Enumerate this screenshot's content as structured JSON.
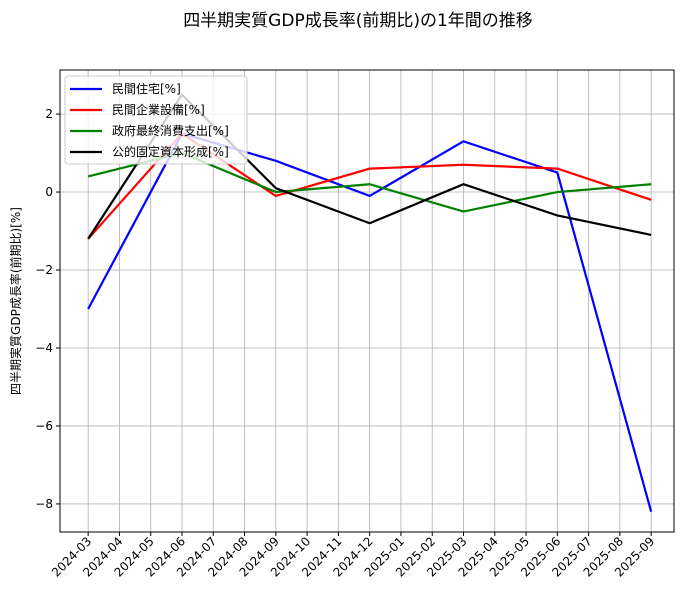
{
  "chart_data": {
    "type": "line",
    "title": "四半期実質GDP成長率(前期比)の1年間の推移",
    "xlabel": "",
    "ylabel": "四半期実質GDP成長率(前期比)[%]",
    "categories": [
      "2024-03",
      "2024-04",
      "2024-05",
      "2024-06",
      "2024-07",
      "2024-08",
      "2024-09",
      "2024-10",
      "2024-11",
      "2024-12",
      "2025-01",
      "2025-02",
      "2025-03",
      "2025-04",
      "2025-05",
      "2025-06",
      "2025-07",
      "2025-08",
      "2025-09"
    ],
    "x": [
      "2024-03",
      "2024-06",
      "2024-09",
      "2024-12",
      "2025-03",
      "2025-06",
      "2025-09"
    ],
    "x_index": [
      0,
      3,
      6,
      9,
      12,
      15,
      18
    ],
    "ylim": [
      -8.72,
      3.13
    ],
    "yticks": [
      -8,
      -6,
      -4,
      -2,
      0,
      2
    ],
    "ytick_labels": [
      "−8",
      "−6",
      "−4",
      "−2",
      "0",
      "2"
    ],
    "grid": true,
    "legend_position": "top-left",
    "series": [
      {
        "name": "民間住宅[%]",
        "color": "#0000ff",
        "values": [
          -3.0,
          1.5,
          0.8,
          -0.1,
          1.3,
          0.5,
          -8.2
        ]
      },
      {
        "name": "民間企業設備[%]",
        "color": "#ff0000",
        "values": [
          -1.2,
          1.5,
          -0.1,
          0.6,
          0.7,
          0.6,
          -0.2
        ]
      },
      {
        "name": "政府最終消費支出[%]",
        "color": "#008000",
        "values": [
          0.4,
          1.0,
          0.0,
          0.2,
          -0.5,
          0.0,
          0.2
        ]
      },
      {
        "name": "公的固定資本形成[%]",
        "color": "#000000",
        "values": [
          -1.2,
          2.5,
          0.1,
          -0.8,
          0.2,
          -0.6,
          -1.1
        ]
      }
    ]
  }
}
